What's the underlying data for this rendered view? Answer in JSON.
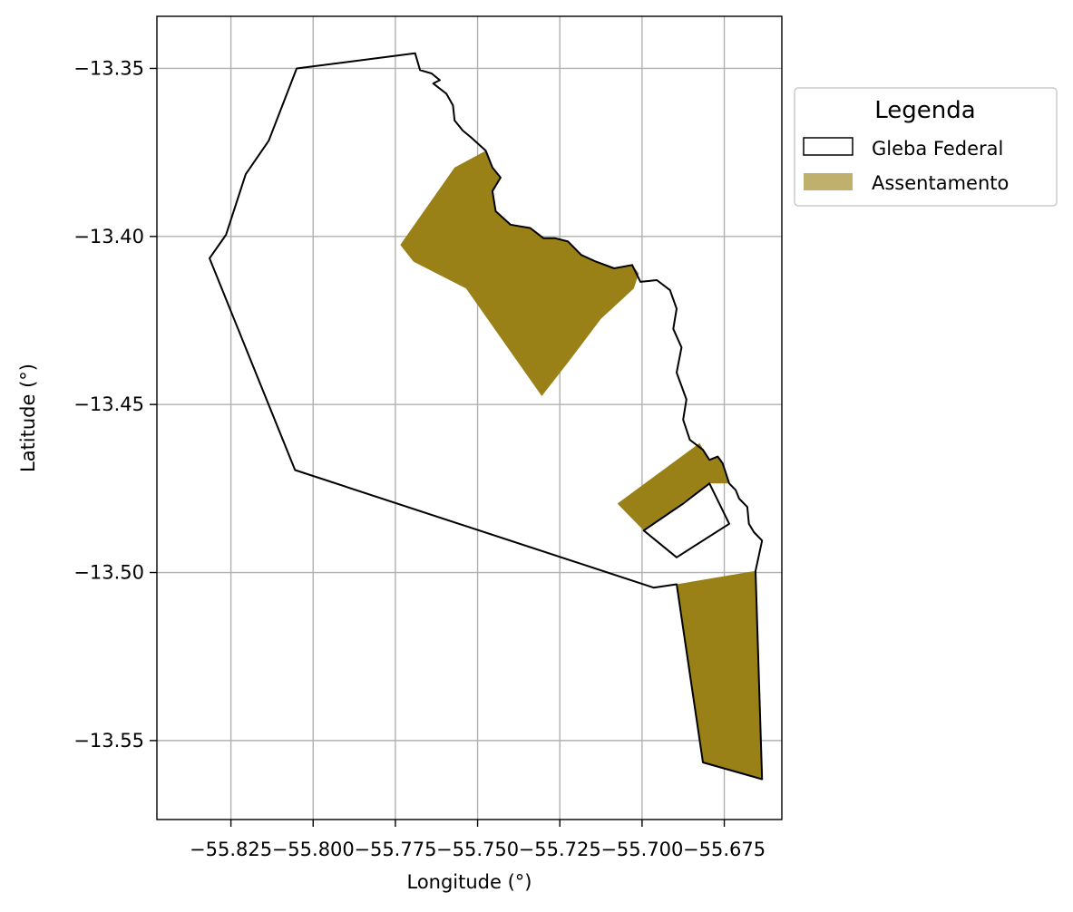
{
  "chart_data": {
    "type": "map",
    "xlabel": "Longitude (°)",
    "ylabel": "Latitude (°)",
    "xlim": [
      -55.8475,
      -55.6575
    ],
    "ylim": [
      -13.5735,
      -13.3345
    ],
    "grid": true,
    "x_ticks": [
      -55.825,
      -55.8,
      -55.775,
      -55.75,
      -55.725,
      -55.7,
      -55.675
    ],
    "x_tick_labels": [
      "−55.825",
      "−55.800",
      "−55.775",
      "−55.750",
      "−55.725",
      "−55.700",
      "−55.675"
    ],
    "y_ticks": [
      -13.35,
      -13.4,
      -13.45,
      -13.5,
      -13.55
    ],
    "y_tick_labels": [
      "−13.35",
      "−13.40",
      "−13.45",
      "−13.50",
      "−13.55"
    ],
    "legend": {
      "title": "Legenda",
      "placement": "outside-upper-right",
      "entries": [
        {
          "label": "Gleba Federal",
          "style": "outline",
          "edge_color": "#000000",
          "fill_color": "#ffffff"
        },
        {
          "label": "Assentamento",
          "style": "fill",
          "fill_color": "#bfb06e"
        }
      ]
    },
    "series": [
      {
        "name": "Gleba Federal",
        "kind": "outline",
        "stroke": "#000000",
        "polygons": [
          [
            [
              -55.805,
              -13.35
            ],
            [
              -55.769,
              -13.3455
            ],
            [
              -55.7675,
              -13.3505
            ],
            [
              -55.764,
              -13.3515
            ],
            [
              -55.7615,
              -13.3535
            ],
            [
              -55.7635,
              -13.3545
            ],
            [
              -55.7595,
              -13.3575
            ],
            [
              -55.7575,
              -13.361
            ],
            [
              -55.757,
              -13.3655
            ],
            [
              -55.7545,
              -13.3685
            ],
            [
              -55.752,
              -13.3705
            ],
            [
              -55.7475,
              -13.3745
            ],
            [
              -55.7455,
              -13.3795
            ],
            [
              -55.743,
              -13.3825
            ],
            [
              -55.7455,
              -13.3865
            ],
            [
              -55.7445,
              -13.3925
            ],
            [
              -55.74,
              -13.3965
            ],
            [
              -55.737,
              -13.397
            ],
            [
              -55.734,
              -13.3975
            ],
            [
              -55.73,
              -13.4005
            ],
            [
              -55.7265,
              -13.4005
            ],
            [
              -55.7225,
              -13.4015
            ],
            [
              -55.7185,
              -13.4055
            ],
            [
              -55.714,
              -13.4075
            ],
            [
              -55.7085,
              -13.4095
            ],
            [
              -55.703,
              -13.4085
            ],
            [
              -55.7005,
              -13.4135
            ],
            [
              -55.6955,
              -13.413
            ],
            [
              -55.6915,
              -13.416
            ],
            [
              -55.6895,
              -13.4215
            ],
            [
              -55.6905,
              -13.4275
            ],
            [
              -55.688,
              -13.433
            ],
            [
              -55.6895,
              -13.4405
            ],
            [
              -55.6865,
              -13.4485
            ],
            [
              -55.6875,
              -13.4545
            ],
            [
              -55.6855,
              -13.4605
            ],
            [
              -55.6815,
              -13.4635
            ],
            [
              -55.6795,
              -13.4665
            ],
            [
              -55.677,
              -13.4655
            ],
            [
              -55.6755,
              -13.4675
            ],
            [
              -55.6735,
              -13.4735
            ],
            [
              -55.6715,
              -13.4755
            ],
            [
              -55.6705,
              -13.478
            ],
            [
              -55.668,
              -13.4805
            ],
            [
              -55.6675,
              -13.4855
            ],
            [
              -55.666,
              -13.488
            ],
            [
              -55.6635,
              -13.4905
            ],
            [
              -55.6655,
              -13.4995
            ],
            [
              -55.6635,
              -13.5615
            ],
            [
              -55.6815,
              -13.5565
            ],
            [
              -55.6895,
              -13.5035
            ],
            [
              -55.6965,
              -13.5045
            ],
            [
              -55.8055,
              -13.4695
            ],
            [
              -55.8315,
              -13.4065
            ],
            [
              -55.8265,
              -13.3995
            ],
            [
              -55.8205,
              -13.3815
            ],
            [
              -55.8135,
              -13.3715
            ]
          ],
          [
            [
              -55.6895,
              -13.4955
            ],
            [
              -55.6735,
              -13.4855
            ],
            [
              -55.6795,
              -13.4735
            ],
            [
              -55.6875,
              -13.4795
            ],
            [
              -55.6995,
              -13.4875
            ]
          ]
        ]
      },
      {
        "name": "Assentamento",
        "kind": "fill",
        "fill": "#998118",
        "polygons": [
          [
            [
              -55.7735,
              -13.4025
            ],
            [
              -55.757,
              -13.3795
            ],
            [
              -55.7475,
              -13.3745
            ],
            [
              -55.7455,
              -13.3795
            ],
            [
              -55.743,
              -13.3825
            ],
            [
              -55.7455,
              -13.3865
            ],
            [
              -55.7445,
              -13.3925
            ],
            [
              -55.74,
              -13.3965
            ],
            [
              -55.737,
              -13.397
            ],
            [
              -55.734,
              -13.3975
            ],
            [
              -55.73,
              -13.4005
            ],
            [
              -55.7265,
              -13.4005
            ],
            [
              -55.7225,
              -13.4015
            ],
            [
              -55.7185,
              -13.4055
            ],
            [
              -55.714,
              -13.4075
            ],
            [
              -55.7085,
              -13.4095
            ],
            [
              -55.703,
              -13.4085
            ],
            [
              -55.701,
              -13.411
            ],
            [
              -55.7025,
              -13.4155
            ],
            [
              -55.7125,
              -13.4245
            ],
            [
              -55.7225,
              -13.4375
            ],
            [
              -55.7305,
              -13.4475
            ],
            [
              -55.7535,
              -13.4155
            ],
            [
              -55.7695,
              -13.4075
            ]
          ],
          [
            [
              -55.7075,
              -13.4795
            ],
            [
              -55.6825,
              -13.4615
            ],
            [
              -55.6795,
              -13.4665
            ],
            [
              -55.677,
              -13.4655
            ],
            [
              -55.6755,
              -13.4675
            ],
            [
              -55.6735,
              -13.4735
            ],
            [
              -55.6795,
              -13.4735
            ],
            [
              -55.6995,
              -13.4875
            ]
          ],
          [
            [
              -55.6895,
              -13.5035
            ],
            [
              -55.6655,
              -13.4995
            ],
            [
              -55.6635,
              -13.5615
            ],
            [
              -55.6815,
              -13.5565
            ]
          ]
        ]
      }
    ]
  }
}
